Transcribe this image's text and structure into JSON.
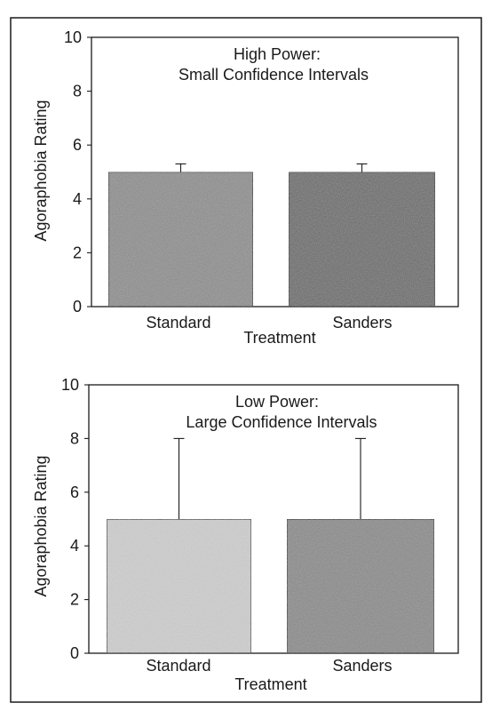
{
  "chart_data": [
    {
      "type": "bar",
      "title": "High Power:",
      "subtitle": "Small Confidence Intervals",
      "categories": [
        "Standard",
        "Sanders"
      ],
      "values": [
        5.0,
        5.0
      ],
      "error_upper": [
        5.3,
        5.3
      ],
      "xlabel": "Treatment",
      "ylabel": "Agoraphobia Rating",
      "ylim": [
        0,
        10
      ],
      "yticks": [
        "0",
        "2",
        "4",
        "6",
        "8",
        "10"
      ],
      "grid": false,
      "bar_colors": [
        "#8e8e8e",
        "#6a6a6a"
      ]
    },
    {
      "type": "bar",
      "title": "Low Power:",
      "subtitle": "Large Confidence Intervals",
      "categories": [
        "Standard",
        "Sanders"
      ],
      "values": [
        5.0,
        5.0
      ],
      "error_upper": [
        8.0,
        8.0
      ],
      "xlabel": "Treatment",
      "ylabel": "Agoraphobia Rating",
      "ylim": [
        0,
        10
      ],
      "yticks": [
        "0",
        "2",
        "4",
        "6",
        "8",
        "10"
      ],
      "grid": false,
      "bar_colors": [
        "#cfcfcf",
        "#8a8a8a"
      ]
    }
  ]
}
